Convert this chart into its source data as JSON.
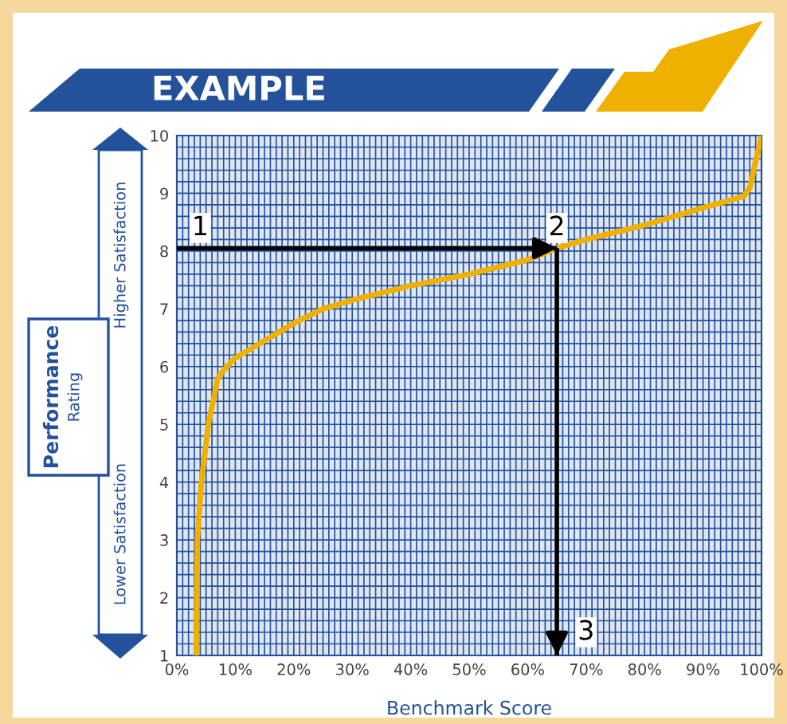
{
  "chart_data": {
    "type": "line",
    "title": "EXAMPLE",
    "xlabel": "Benchmark Score",
    "ylabel": "Performance Rating",
    "annotations": [
      {
        "text": "1",
        "x": 4,
        "y": 8.4
      },
      {
        "text": "2",
        "x": 65,
        "y": 8.4
      },
      {
        "text": "3",
        "x": 70,
        "y": 1.4
      },
      "Higher Satisfaction",
      "Lower Satisfaction"
    ],
    "series": [
      {
        "color": "#f0b000",
        "x": [
          3.3,
          3.5,
          4.2,
          5.4,
          7,
          8.5,
          10,
          15,
          20,
          25,
          30,
          40,
          50,
          60,
          65,
          70,
          80,
          90,
          97,
          98,
          100
        ],
        "values": [
          1,
          3,
          4,
          5,
          5.8,
          6,
          6.15,
          6.45,
          6.75,
          7.0,
          7.15,
          7.4,
          7.6,
          7.85,
          8.05,
          8.2,
          8.45,
          8.75,
          8.95,
          9.1,
          10
        ]
      }
    ],
    "ref_lines": [
      {
        "axis": "y",
        "value": 8.05,
        "color": "#000000"
      },
      {
        "axis": "x",
        "value": 65,
        "color": "#000000"
      }
    ],
    "xlim": [
      0,
      100
    ],
    "ylim": [
      1,
      10
    ],
    "xticks": [
      {
        "value": 0,
        "label": "0%"
      },
      {
        "value": 10,
        "label": "10%"
      },
      {
        "value": 20,
        "label": "20%"
      },
      {
        "value": 30,
        "label": "30%"
      },
      {
        "value": 40,
        "label": "40%"
      },
      {
        "value": 50,
        "label": "50%"
      },
      {
        "value": 60,
        "label": "60%"
      },
      {
        "value": 70,
        "label": "70%"
      },
      {
        "value": 80,
        "label": "80%"
      },
      {
        "value": 90,
        "label": "90%"
      },
      {
        "value": 100,
        "label": "100%"
      }
    ],
    "yticks": [
      1,
      2,
      3,
      4,
      5,
      6,
      7,
      8,
      9,
      10
    ],
    "grid": true,
    "marker": "none",
    "line_style": "solid"
  }
}
